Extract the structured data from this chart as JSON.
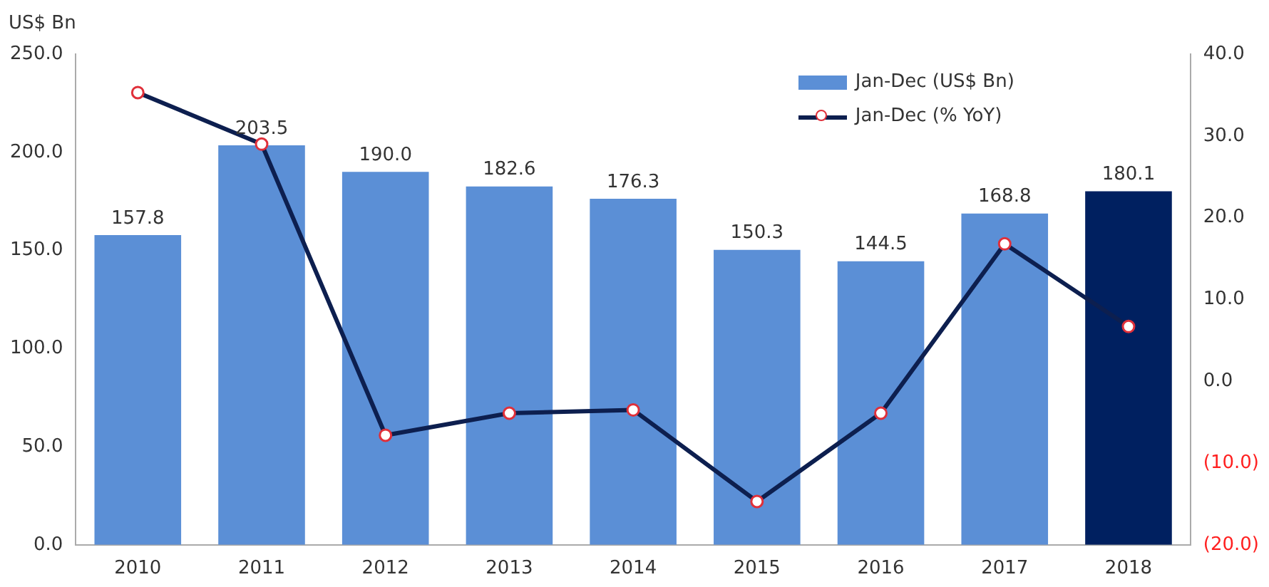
{
  "chart_data": {
    "type": "bar",
    "ylabel": "US$ Bn",
    "categories": [
      "2010",
      "2011",
      "2012",
      "2013",
      "2014",
      "2015",
      "2016",
      "2017",
      "2018"
    ],
    "series": [
      {
        "name": "Jan-Dec (US$ Bn)",
        "color": "#5b8fd6",
        "colors": [
          "#5b8fd6",
          "#5b8fd6",
          "#5b8fd6",
          "#5b8fd6",
          "#5b8fd6",
          "#5b8fd6",
          "#5b8fd6",
          "#5b8fd6",
          "#002060"
        ],
        "values": [
          157.8,
          203.5,
          190.0,
          182.6,
          176.3,
          150.3,
          144.5,
          168.8,
          180.1
        ],
        "value_labels": [
          "157.8",
          "203.5",
          "190.0",
          "182.6",
          "176.3",
          "150.3",
          "144.5",
          "168.8",
          "180.1"
        ]
      },
      {
        "name": "Jan-Dec (% YoY)",
        "type": "line",
        "axis": "y2",
        "color": "#0d1f4f",
        "marker": "circle",
        "values": [
          35.3,
          29.0,
          -6.6,
          -3.9,
          -3.5,
          -14.7,
          -3.9,
          16.8,
          6.7
        ]
      }
    ],
    "ylim": [
      0,
      250
    ],
    "yticks": [
      {
        "value": 0,
        "label": "0.0"
      },
      {
        "value": 50,
        "label": "50.0"
      },
      {
        "value": 100,
        "label": "100.0"
      },
      {
        "value": 150,
        "label": "150.0"
      },
      {
        "value": 200,
        "label": "200.0"
      },
      {
        "value": 250,
        "label": "250.0"
      }
    ],
    "y2lim": [
      -20,
      40
    ],
    "y2ticks": [
      {
        "value": -20,
        "label": "(20.0)"
      },
      {
        "value": -10,
        "label": "(10.0)"
      },
      {
        "value": 0,
        "label": "0.0"
      },
      {
        "value": 10,
        "label": "10.0"
      },
      {
        "value": 20,
        "label": "20.0"
      },
      {
        "value": 30,
        "label": "30.0"
      },
      {
        "value": 40,
        "label": "40.0"
      }
    ],
    "grid": false,
    "legend": "top right"
  }
}
